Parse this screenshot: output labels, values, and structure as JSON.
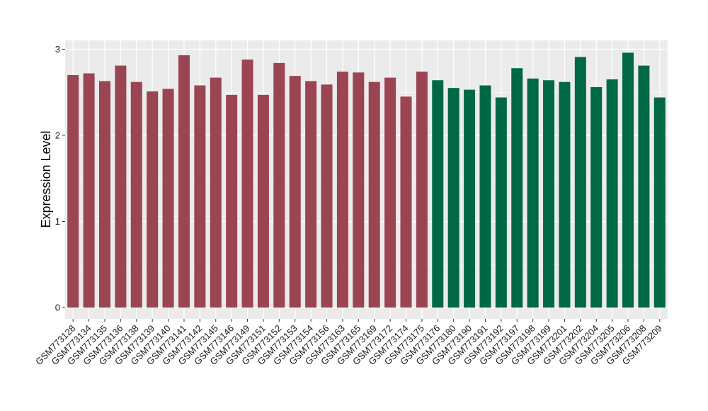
{
  "chart_data": {
    "type": "bar",
    "title": "",
    "xlabel": "",
    "ylabel": "Expression Level",
    "ylim": [
      -0.1,
      3.05
    ],
    "yticks": [
      0,
      1,
      2,
      3
    ],
    "grid": true,
    "legend": "none",
    "panel_color": "#EBEBEB",
    "grid_color": "#FFFFFF",
    "categories": [
      "GSM773128",
      "GSM773134",
      "GSM773135",
      "GSM773136",
      "GSM773138",
      "GSM773139",
      "GSM773140",
      "GSM773141",
      "GSM773142",
      "GSM773145",
      "GSM773146",
      "GSM773149",
      "GSM773151",
      "GSM773152",
      "GSM773153",
      "GSM773154",
      "GSM773156",
      "GSM773163",
      "GSM773165",
      "GSM773169",
      "GSM773172",
      "GSM773174",
      "GSM773175",
      "GSM773176",
      "GSM773180",
      "GSM773190",
      "GSM773191",
      "GSM773192",
      "GSM773197",
      "GSM773198",
      "GSM773199",
      "GSM773201",
      "GSM773202",
      "GSM773204",
      "GSM773205",
      "GSM773206",
      "GSM773208",
      "GSM773209"
    ],
    "values": [
      2.7,
      2.72,
      2.63,
      2.81,
      2.62,
      2.51,
      2.54,
      2.93,
      2.58,
      2.67,
      2.47,
      2.88,
      2.47,
      2.84,
      2.69,
      2.63,
      2.59,
      2.74,
      2.73,
      2.62,
      2.67,
      2.45,
      2.74,
      2.64,
      2.55,
      2.53,
      2.58,
      2.44,
      2.78,
      2.66,
      2.64,
      2.62,
      2.91,
      2.56,
      2.65,
      2.96,
      2.81,
      2.44
    ],
    "colors": [
      "#9B4452",
      "#9B4452",
      "#9B4452",
      "#9B4452",
      "#9B4452",
      "#9B4452",
      "#9B4452",
      "#9B4452",
      "#9B4452",
      "#9B4452",
      "#9B4452",
      "#9B4452",
      "#9B4452",
      "#9B4452",
      "#9B4452",
      "#9B4452",
      "#9B4452",
      "#9B4452",
      "#9B4452",
      "#9B4452",
      "#9B4452",
      "#9B4452",
      "#9B4452",
      "#006846",
      "#006846",
      "#006846",
      "#006846",
      "#006846",
      "#006846",
      "#006846",
      "#006846",
      "#006846",
      "#006846",
      "#006846",
      "#006846",
      "#006846",
      "#006846",
      "#006846"
    ]
  }
}
